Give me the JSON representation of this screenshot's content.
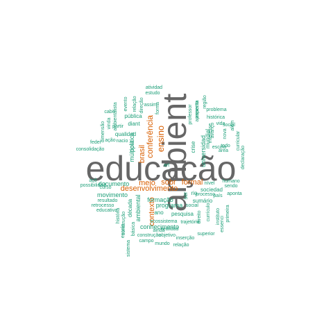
{
  "colors": {
    "large": "#666666",
    "medium": "#d95f02",
    "small": "#1b9e77"
  },
  "words": [
    {
      "text": "educação",
      "weight": 10,
      "group": "large"
    },
    {
      "text": "ambient",
      "weight": 10,
      "group": "large"
    },
    {
      "text": "desenvolvimento",
      "weight": 5,
      "group": "medium"
    },
    {
      "text": "ensino",
      "weight": 5,
      "group": "medium"
    },
    {
      "text": "conferência",
      "weight": 5,
      "group": "medium"
    },
    {
      "text": "brasil",
      "weight": 5,
      "group": "medium"
    },
    {
      "text": "contexto",
      "weight": 5,
      "group": "medium"
    },
    {
      "text": "formal",
      "weight": 5,
      "group": "medium"
    },
    {
      "text": "meio",
      "weight": 5,
      "group": "medium"
    },
    {
      "text": "sobr",
      "weight": 5,
      "group": "medium"
    },
    {
      "text": "política",
      "weight": 4,
      "group": "small"
    },
    {
      "text": "múltipla",
      "weight": 4,
      "group": "small"
    },
    {
      "text": "universidad",
      "weight": 4,
      "group": "small"
    },
    {
      "text": "formação",
      "weight": 4,
      "group": "small"
    },
    {
      "text": "programa",
      "weight": 4,
      "group": "small"
    },
    {
      "text": "documento",
      "weight": 4,
      "group": "small"
    },
    {
      "text": "movimento",
      "weight": 4,
      "group": "small"
    },
    {
      "text": "ambiental",
      "weight": 4,
      "group": "small"
    },
    {
      "text": "conhecimento",
      "weight": 4,
      "group": "small"
    },
    {
      "text": "sumário",
      "weight": 4,
      "group": "small"
    },
    {
      "text": "qualidad",
      "weight": 3,
      "group": "small"
    },
    {
      "text": "diant",
      "weight": 3,
      "group": "small"
    },
    {
      "text": "pública",
      "weight": 3,
      "group": "small"
    },
    {
      "text": "crise",
      "weight": 3,
      "group": "small"
    },
    {
      "text": "mundial",
      "weight": 3,
      "group": "small"
    },
    {
      "text": "década",
      "weight": 3,
      "group": "small"
    },
    {
      "text": "pesquisa",
      "weight": 3,
      "group": "small"
    },
    {
      "text": "ano",
      "weight": 3,
      "group": "small"
    },
    {
      "text": "sociedad",
      "weight": 3,
      "group": "small"
    },
    {
      "text": "rio",
      "weight": 3,
      "group": "small"
    },
    {
      "text": "ser",
      "weight": 3,
      "group": "small"
    },
    {
      "text": "nível",
      "weight": 2,
      "group": "small"
    },
    {
      "text": "curso",
      "weight": 2,
      "group": "small"
    },
    {
      "text": "social",
      "weight": 2,
      "group": "small"
    },
    {
      "text": "humano",
      "weight": 2,
      "group": "small"
    },
    {
      "text": "sendo",
      "weight": 2,
      "group": "small"
    },
    {
      "text": "aponta",
      "weight": 2,
      "group": "small"
    },
    {
      "text": "país",
      "weight": 2,
      "group": "small"
    },
    {
      "text": "possibilidad",
      "weight": 2,
      "group": "small"
    },
    {
      "text": "açõ",
      "weight": 2,
      "group": "small"
    },
    {
      "text": "partir",
      "weight": 2,
      "group": "small"
    },
    {
      "text": "ação",
      "weight": 2,
      "group": "small"
    },
    {
      "text": "nacio",
      "weight": 2,
      "group": "small"
    },
    {
      "text": "feder",
      "weight": 2,
      "group": "small"
    },
    {
      "text": "consolidação",
      "weight": 2,
      "group": "small"
    },
    {
      "text": "dimensão",
      "weight": 2,
      "group": "small"
    },
    {
      "text": "vinda",
      "weight": 2,
      "group": "small"
    },
    {
      "text": "ambientalista",
      "weight": 2,
      "group": "small"
    },
    {
      "text": "cabe",
      "weight": 2,
      "group": "small"
    },
    {
      "text": "evento",
      "weight": 2,
      "group": "small"
    },
    {
      "text": "relação",
      "weight": 2,
      "group": "small"
    },
    {
      "text": "direção",
      "weight": 2,
      "group": "small"
    },
    {
      "text": "atividad",
      "weight": 2,
      "group": "small"
    },
    {
      "text": "estudo",
      "weight": 2,
      "group": "small"
    },
    {
      "text": "assim",
      "weight": 2,
      "group": "small"
    },
    {
      "text": "forma",
      "weight": 2,
      "group": "small"
    },
    {
      "text": "professor",
      "weight": 2,
      "group": "small"
    },
    {
      "text": "aspecto",
      "weight": 2,
      "group": "small"
    },
    {
      "text": "apresenta",
      "weight": 2,
      "group": "small"
    },
    {
      "text": "região",
      "weight": 2,
      "group": "small"
    },
    {
      "text": "problema",
      "weight": 2,
      "group": "small"
    },
    {
      "text": "histórica",
      "weight": 2,
      "group": "small"
    },
    {
      "text": "vida",
      "weight": 2,
      "group": "small"
    },
    {
      "text": "avanço",
      "weight": 2,
      "group": "small"
    },
    {
      "text": "interesse",
      "weight": 2,
      "group": "small"
    },
    {
      "text": "escola",
      "weight": 2,
      "group": "small"
    },
    {
      "text": "todo",
      "weight": 2,
      "group": "small"
    },
    {
      "text": "área",
      "weight": 2,
      "group": "small"
    },
    {
      "text": "nova",
      "weight": 2,
      "group": "small"
    },
    {
      "text": "social",
      "weight": 2,
      "group": "small"
    },
    {
      "text": "além",
      "weight": 2,
      "group": "small"
    },
    {
      "text": "curricular",
      "weight": 2,
      "group": "small"
    },
    {
      "text": "declaração",
      "weight": 2,
      "group": "small"
    },
    {
      "text": "resultado",
      "weight": 2,
      "group": "small"
    },
    {
      "text": "retrocesso",
      "weight": 2,
      "group": "small"
    },
    {
      "text": "educativa",
      "weight": 2,
      "group": "small"
    },
    {
      "text": "história",
      "weight": 2,
      "group": "small"
    },
    {
      "text": "escola",
      "weight": 2,
      "group": "small"
    },
    {
      "text": "construção",
      "weight": 2,
      "group": "small"
    },
    {
      "text": "básica",
      "weight": 2,
      "group": "small"
    },
    {
      "text": "sistema",
      "weight": 2,
      "group": "small"
    },
    {
      "text": "ecossistema",
      "weight": 2,
      "group": "small"
    },
    {
      "text": "ainda",
      "weight": 2,
      "group": "small"
    },
    {
      "text": "realidad",
      "weight": 2,
      "group": "small"
    },
    {
      "text": "construção",
      "weight": 2,
      "group": "small"
    },
    {
      "text": "objetivo",
      "weight": 2,
      "group": "small"
    },
    {
      "text": "campo",
      "weight": 2,
      "group": "small"
    },
    {
      "text": "mundo",
      "weight": 2,
      "group": "small"
    },
    {
      "text": "relação",
      "weight": 2,
      "group": "small"
    },
    {
      "text": "inserção",
      "weight": 2,
      "group": "small"
    },
    {
      "text": "trajetória",
      "weight": 2,
      "group": "small"
    },
    {
      "text": "superior",
      "weight": 2,
      "group": "small"
    },
    {
      "text": "essenci",
      "weight": 2,
      "group": "small"
    },
    {
      "text": "instituto",
      "weight": 2,
      "group": "small"
    },
    {
      "text": "primeira",
      "weight": 2,
      "group": "small"
    },
    {
      "text": "currículo",
      "weight": 2,
      "group": "small"
    },
    {
      "text": "processo",
      "weight": 2,
      "group": "small"
    },
    {
      "text": "direito",
      "weight": 2,
      "group": "small"
    },
    {
      "text": "art",
      "weight": 2,
      "group": "small"
    }
  ]
}
